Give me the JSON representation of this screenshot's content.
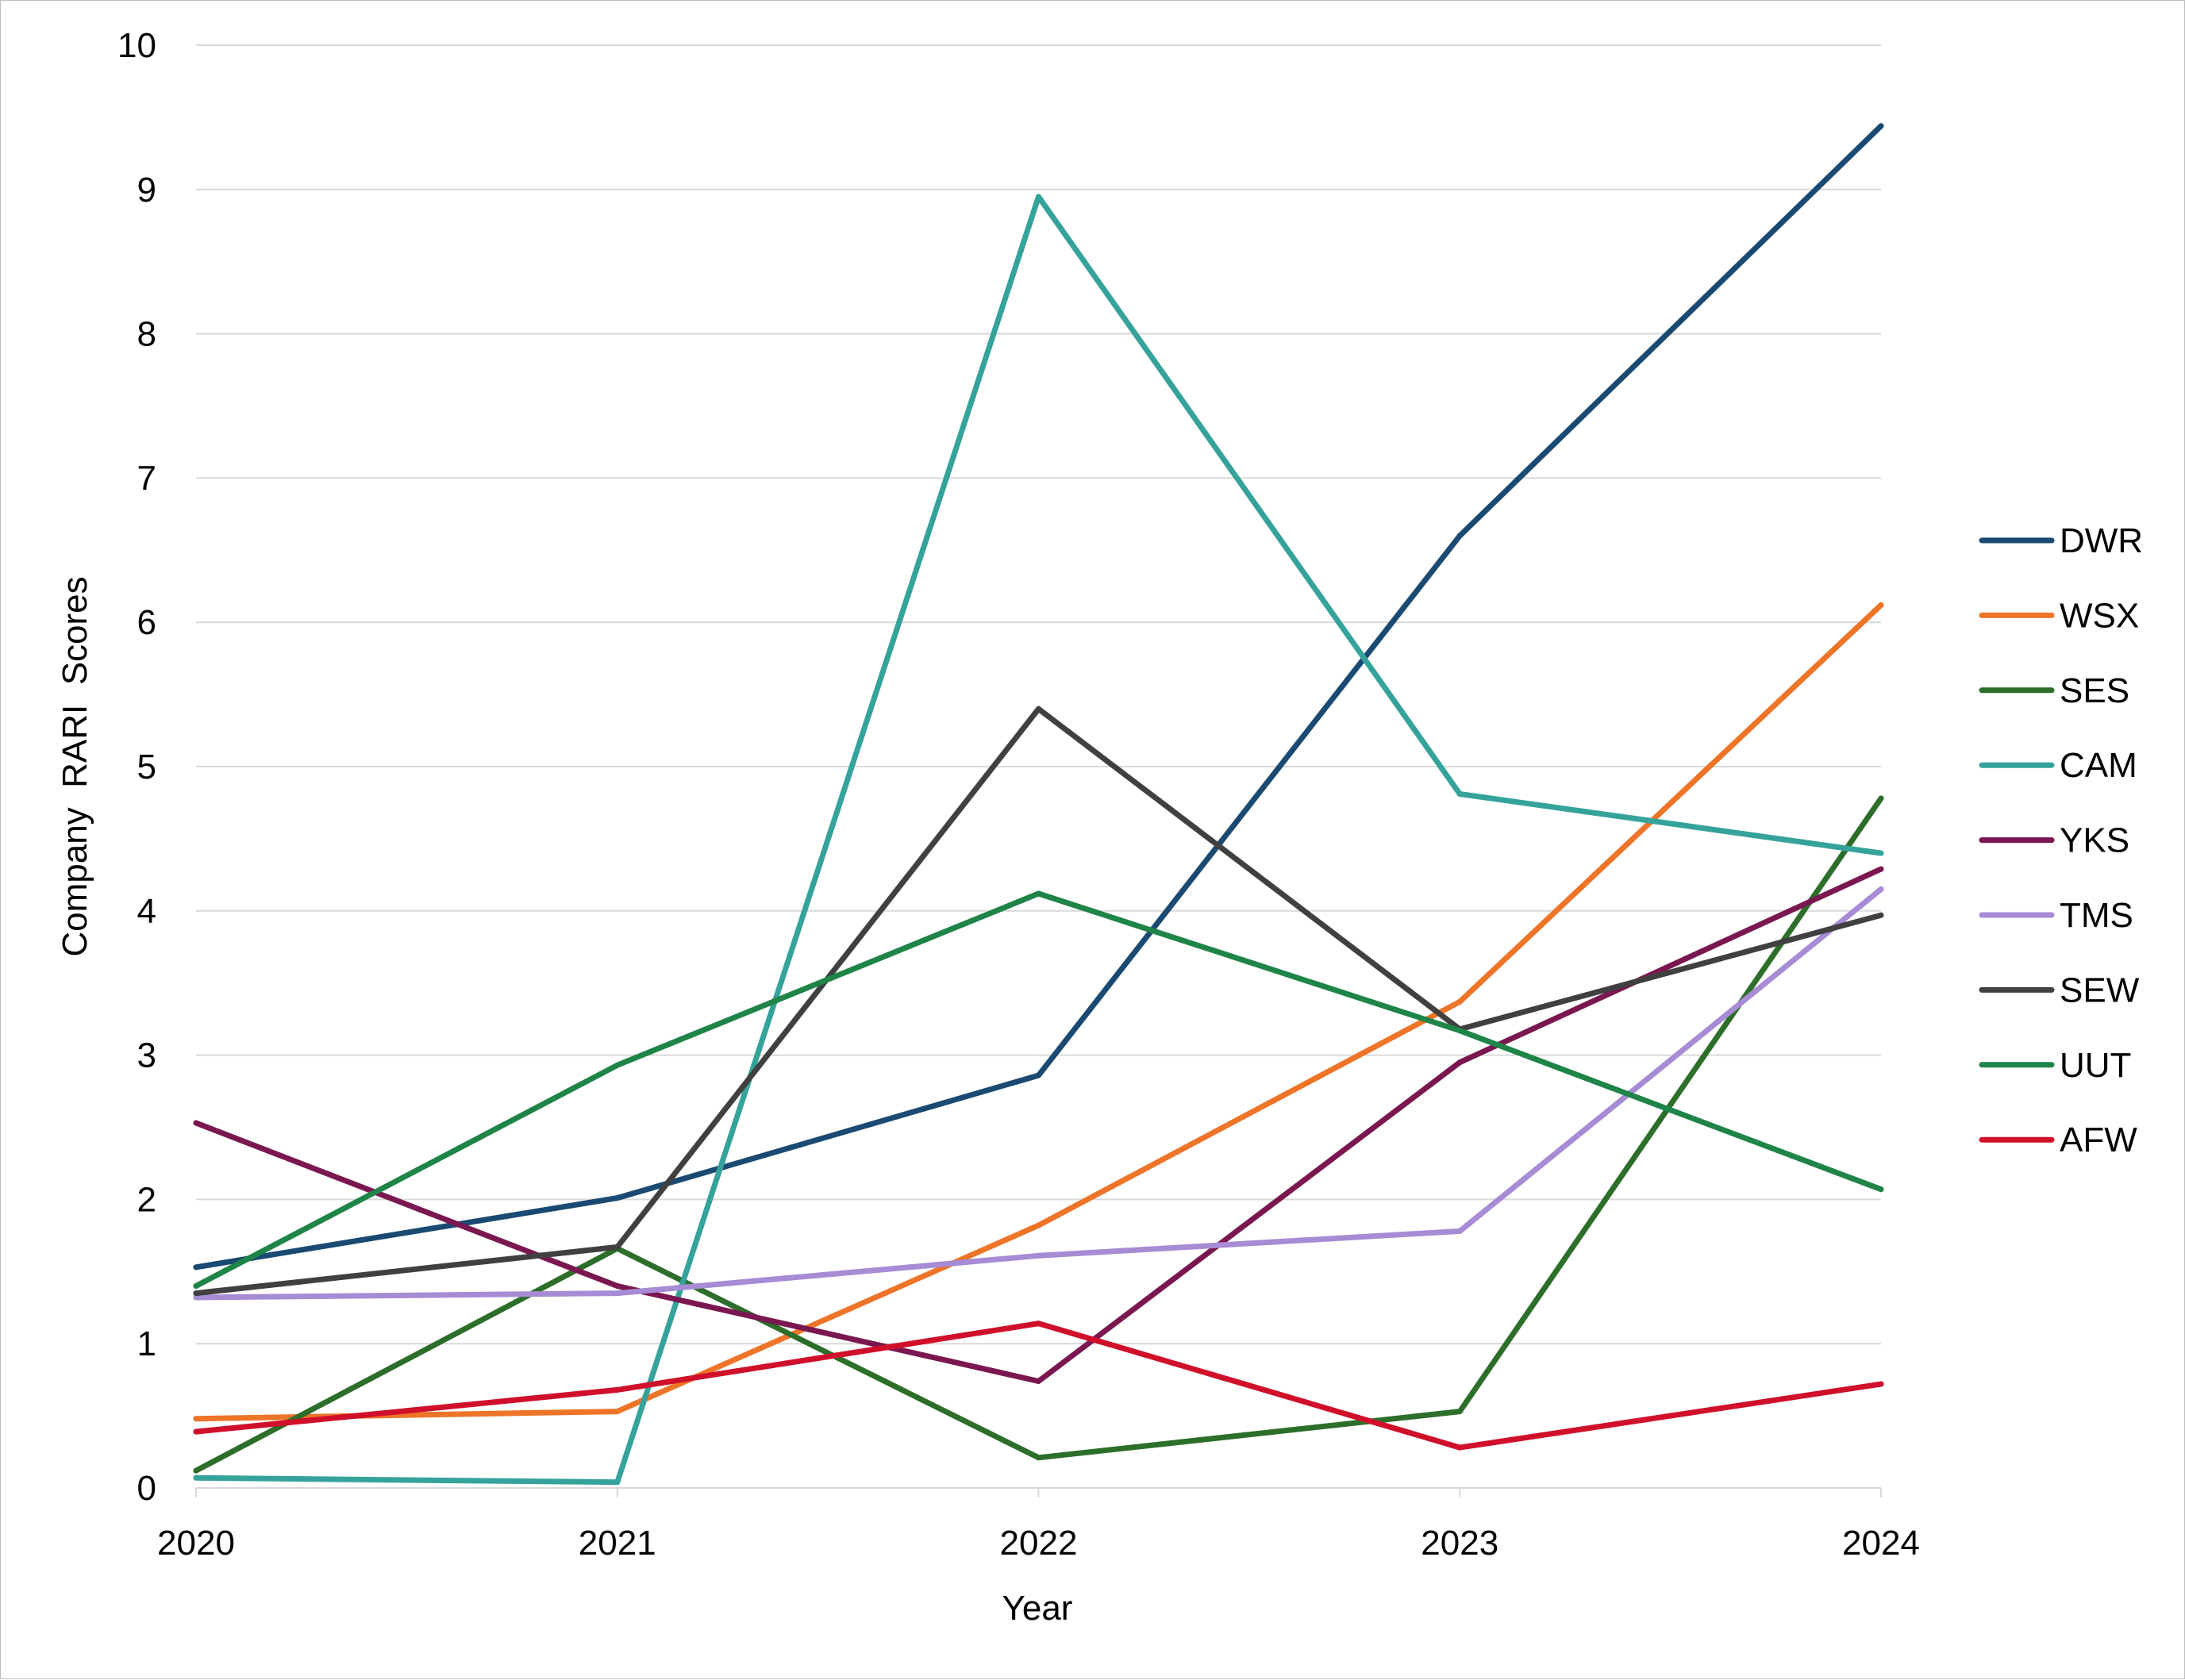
{
  "chart_data": {
    "type": "line",
    "title": "",
    "xlabel": "Year",
    "ylabel": "Company  RARI  Scores",
    "x": [
      "2020",
      "2021",
      "2022",
      "2023",
      "2024"
    ],
    "ylim": [
      0,
      10
    ],
    "yticks": [
      0,
      1,
      2,
      3,
      4,
      5,
      6,
      7,
      8,
      9,
      10
    ],
    "grid": true,
    "legend_position": "right",
    "series": [
      {
        "name": "DWR",
        "color": "#1a4a72",
        "values": [
          1.53,
          2.01,
          2.86,
          6.6,
          9.44
        ]
      },
      {
        "name": "WSX",
        "color": "#ee7428",
        "values": [
          0.48,
          0.53,
          1.82,
          3.37,
          6.12
        ]
      },
      {
        "name": "SES",
        "color": "#2c6e2a",
        "values": [
          0.12,
          1.66,
          0.21,
          0.53,
          4.78
        ]
      },
      {
        "name": "CAM",
        "color": "#35a39b",
        "values": [
          0.07,
          0.04,
          8.95,
          4.81,
          4.4
        ]
      },
      {
        "name": "YKS",
        "color": "#7b1750",
        "values": [
          2.53,
          1.4,
          0.74,
          2.95,
          4.29
        ]
      },
      {
        "name": "TMS",
        "color": "#a78bd4",
        "values": [
          1.32,
          1.35,
          1.61,
          1.78,
          4.15
        ]
      },
      {
        "name": "SEW",
        "color": "#404040",
        "values": [
          1.35,
          1.67,
          5.4,
          3.18,
          3.97
        ]
      },
      {
        "name": "UUT",
        "color": "#1e8448",
        "values": [
          1.4,
          2.93,
          4.12,
          3.17,
          2.07
        ]
      },
      {
        "name": "AFW",
        "color": "#d0102a",
        "values": [
          0.39,
          0.68,
          1.14,
          0.28,
          0.72
        ]
      }
    ]
  }
}
